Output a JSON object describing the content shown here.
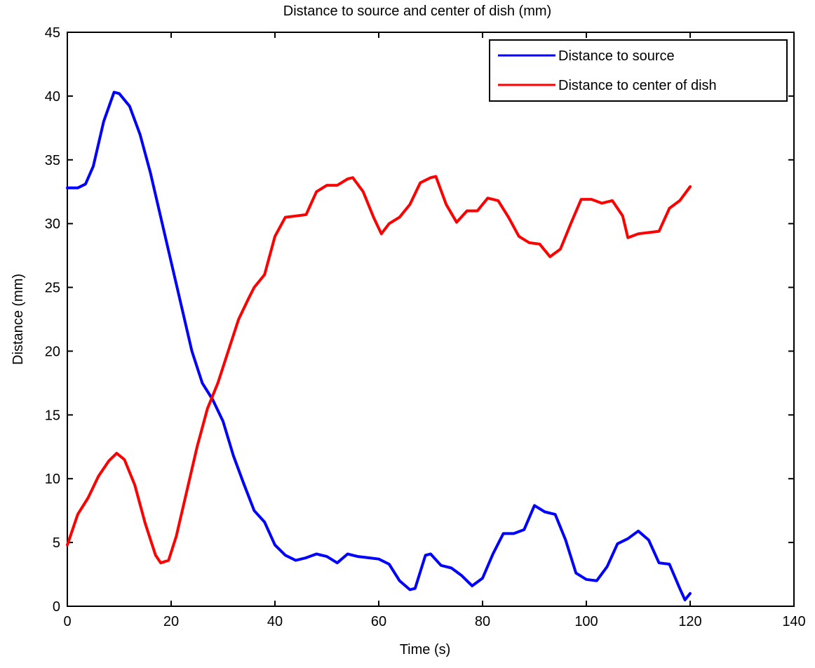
{
  "chart_data": {
    "type": "line",
    "title": "Distance to source and center of dish (mm)",
    "xlabel": "Time (s)",
    "ylabel": "Distance (mm)",
    "xlim": [
      0,
      140
    ],
    "ylim": [
      0,
      45
    ],
    "xticks": [
      0,
      20,
      40,
      60,
      80,
      100,
      120,
      140
    ],
    "yticks": [
      0,
      5,
      10,
      15,
      20,
      25,
      30,
      35,
      40,
      45
    ],
    "grid": false,
    "legend_position": "top-right",
    "series": [
      {
        "name": "Distance to source",
        "color": "#0000ff",
        "points": [
          [
            0,
            32.8
          ],
          [
            2,
            32.8
          ],
          [
            3.5,
            33.1
          ],
          [
            5,
            34.5
          ],
          [
            7,
            38.0
          ],
          [
            9,
            40.3
          ],
          [
            10,
            40.2
          ],
          [
            12,
            39.2
          ],
          [
            14,
            37.0
          ],
          [
            16,
            34.0
          ],
          [
            18,
            30.5
          ],
          [
            20,
            27.0
          ],
          [
            22,
            23.5
          ],
          [
            24,
            20.0
          ],
          [
            26,
            17.5
          ],
          [
            28,
            16.2
          ],
          [
            30,
            14.5
          ],
          [
            32,
            11.8
          ],
          [
            34,
            9.6
          ],
          [
            36,
            7.5
          ],
          [
            38,
            6.6
          ],
          [
            40,
            4.8
          ],
          [
            42,
            4.0
          ],
          [
            44,
            3.6
          ],
          [
            46,
            3.8
          ],
          [
            48,
            4.1
          ],
          [
            50,
            3.9
          ],
          [
            52,
            3.4
          ],
          [
            54,
            4.1
          ],
          [
            56,
            3.9
          ],
          [
            58,
            3.8
          ],
          [
            60,
            3.7
          ],
          [
            62,
            3.3
          ],
          [
            64,
            2.0
          ],
          [
            66,
            1.3
          ],
          [
            67,
            1.4
          ],
          [
            69,
            4.0
          ],
          [
            70,
            4.1
          ],
          [
            72,
            3.2
          ],
          [
            74,
            3.0
          ],
          [
            76,
            2.4
          ],
          [
            78,
            1.6
          ],
          [
            80,
            2.2
          ],
          [
            82,
            4.1
          ],
          [
            84,
            5.7
          ],
          [
            86,
            5.7
          ],
          [
            88,
            6.0
          ],
          [
            90,
            7.9
          ],
          [
            92,
            7.4
          ],
          [
            94,
            7.2
          ],
          [
            96,
            5.2
          ],
          [
            98,
            2.6
          ],
          [
            100,
            2.1
          ],
          [
            102,
            2.0
          ],
          [
            104,
            3.1
          ],
          [
            106,
            4.9
          ],
          [
            108,
            5.3
          ],
          [
            110,
            5.9
          ],
          [
            112,
            5.2
          ],
          [
            114,
            3.4
          ],
          [
            116,
            3.3
          ],
          [
            118,
            1.4
          ],
          [
            119,
            0.5
          ],
          [
            120,
            1.0
          ]
        ]
      },
      {
        "name": "Distance to center of dish",
        "color": "#ff0000",
        "points": [
          [
            0,
            4.8
          ],
          [
            2,
            7.2
          ],
          [
            4,
            8.5
          ],
          [
            6,
            10.2
          ],
          [
            8,
            11.4
          ],
          [
            9.5,
            12.0
          ],
          [
            11,
            11.5
          ],
          [
            13,
            9.5
          ],
          [
            15,
            6.5
          ],
          [
            17,
            4.0
          ],
          [
            18,
            3.4
          ],
          [
            19.5,
            3.6
          ],
          [
            21,
            5.5
          ],
          [
            23,
            9.0
          ],
          [
            25,
            12.5
          ],
          [
            27,
            15.5
          ],
          [
            29,
            17.5
          ],
          [
            31,
            20.0
          ],
          [
            33,
            22.5
          ],
          [
            35,
            24.2
          ],
          [
            36,
            25.0
          ],
          [
            38,
            26.0
          ],
          [
            40,
            29.0
          ],
          [
            42,
            30.5
          ],
          [
            44,
            30.6
          ],
          [
            46,
            30.7
          ],
          [
            48,
            32.5
          ],
          [
            50,
            33.0
          ],
          [
            52,
            33.0
          ],
          [
            54,
            33.5
          ],
          [
            55,
            33.6
          ],
          [
            57,
            32.5
          ],
          [
            59,
            30.5
          ],
          [
            60.5,
            29.2
          ],
          [
            62,
            30.0
          ],
          [
            64,
            30.5
          ],
          [
            66,
            31.5
          ],
          [
            68,
            33.2
          ],
          [
            70,
            33.6
          ],
          [
            71,
            33.7
          ],
          [
            73,
            31.5
          ],
          [
            75,
            30.1
          ],
          [
            77,
            31.0
          ],
          [
            79,
            31.0
          ],
          [
            81,
            32.0
          ],
          [
            83,
            31.8
          ],
          [
            85,
            30.5
          ],
          [
            87,
            29.0
          ],
          [
            89,
            28.5
          ],
          [
            91,
            28.4
          ],
          [
            93,
            27.4
          ],
          [
            95,
            28.0
          ],
          [
            97,
            30.0
          ],
          [
            99,
            31.9
          ],
          [
            101,
            31.9
          ],
          [
            103,
            31.6
          ],
          [
            105,
            31.8
          ],
          [
            107,
            30.6
          ],
          [
            108,
            28.9
          ],
          [
            110,
            29.2
          ],
          [
            112,
            29.3
          ],
          [
            114,
            29.4
          ],
          [
            116,
            31.2
          ],
          [
            118,
            31.8
          ],
          [
            120,
            32.9
          ]
        ]
      }
    ]
  }
}
